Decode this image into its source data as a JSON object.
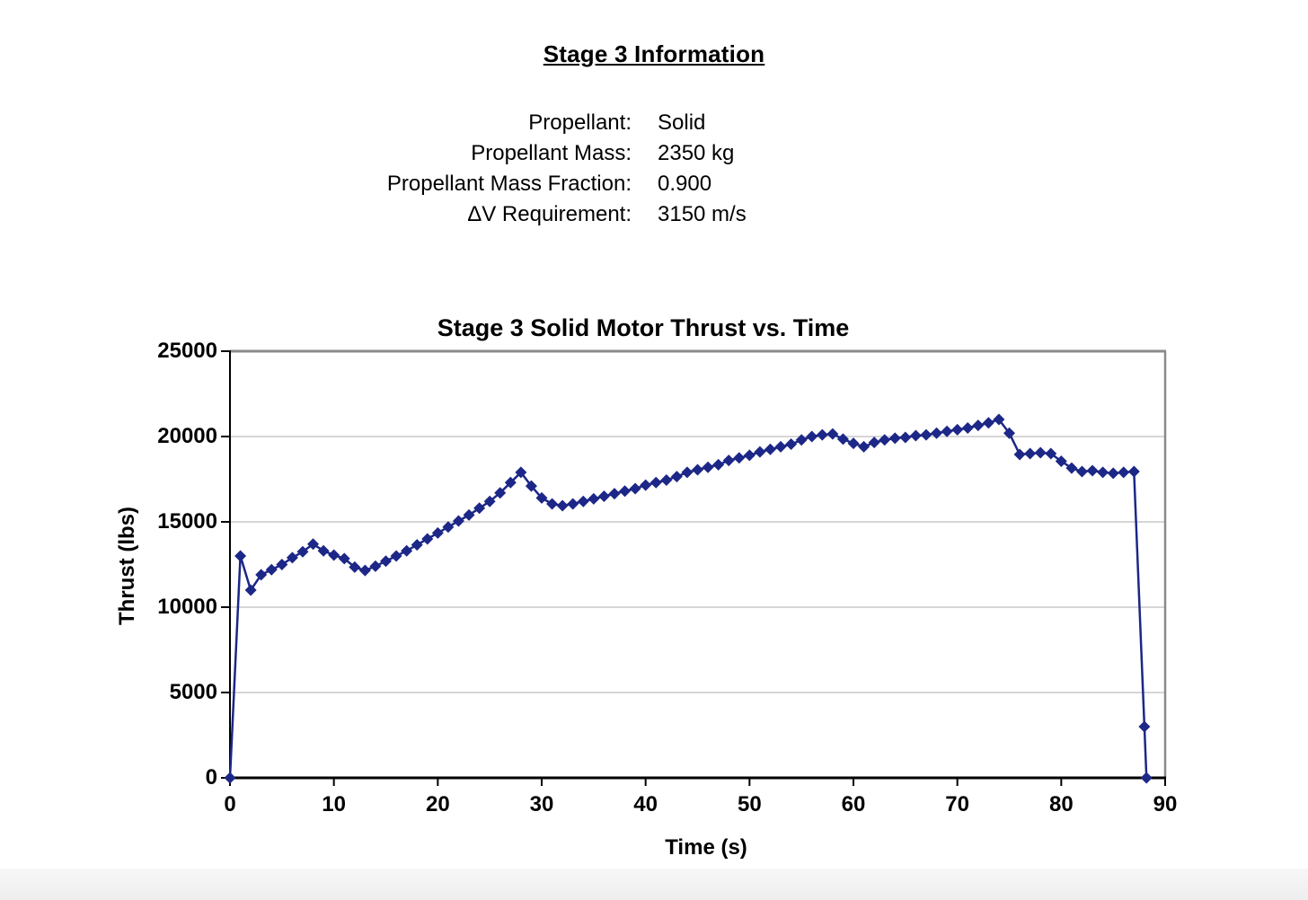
{
  "info_panel": {
    "title": "Stage 3 Information",
    "rows": [
      {
        "label": "Propellant:",
        "value": "Solid"
      },
      {
        "label": "Propellant Mass:",
        "value": "2350 kg"
      },
      {
        "label": "Propellant Mass Fraction:",
        "value": "0.900"
      },
      {
        "label": "ΔV Requirement:",
        "value": "3150 m/s"
      }
    ]
  },
  "chart_data": {
    "type": "line",
    "title": "Stage 3 Solid Motor Thrust vs. Time",
    "xlabel": "Time (s)",
    "ylabel": "Thrust (lbs)",
    "xlim": [
      0,
      90
    ],
    "ylim": [
      0,
      25000
    ],
    "x_ticks": [
      0,
      10,
      20,
      30,
      40,
      50,
      60,
      70,
      80,
      90
    ],
    "y_ticks": [
      0,
      5000,
      10000,
      15000,
      20000,
      25000
    ],
    "grid": "horizontal",
    "legend": "none",
    "colors": {
      "series": "#1c2787",
      "gridline": "#c8c8c8",
      "plot_border": "#8a8a8a",
      "axis": "#000000"
    },
    "series": [
      {
        "name": "Thrust",
        "marker": "diamond",
        "x": [
          0,
          1,
          2,
          3,
          4,
          5,
          6,
          7,
          8,
          9,
          10,
          11,
          12,
          13,
          14,
          15,
          16,
          17,
          18,
          19,
          20,
          21,
          22,
          23,
          24,
          25,
          26,
          27,
          28,
          29,
          30,
          31,
          32,
          33,
          34,
          35,
          36,
          37,
          38,
          39,
          40,
          41,
          42,
          43,
          44,
          45,
          46,
          47,
          48,
          49,
          50,
          51,
          52,
          53,
          54,
          55,
          56,
          57,
          58,
          59,
          60,
          61,
          62,
          63,
          64,
          65,
          66,
          67,
          68,
          69,
          70,
          71,
          72,
          73,
          74,
          75,
          76,
          77,
          78,
          79,
          80,
          81,
          82,
          83,
          84,
          85,
          86,
          87,
          88,
          88.2
        ],
        "y": [
          0,
          13000,
          11000,
          11900,
          12200,
          12500,
          12900,
          13250,
          13700,
          13300,
          13050,
          12850,
          12350,
          12150,
          12400,
          12700,
          13000,
          13300,
          13650,
          14000,
          14350,
          14700,
          15050,
          15400,
          15800,
          16200,
          16700,
          17300,
          17900,
          17100,
          16400,
          16050,
          15950,
          16050,
          16200,
          16350,
          16500,
          16650,
          16800,
          16950,
          17150,
          17300,
          17450,
          17650,
          17900,
          18050,
          18200,
          18350,
          18600,
          18750,
          18900,
          19100,
          19250,
          19400,
          19550,
          19800,
          20000,
          20100,
          20150,
          19850,
          19600,
          19400,
          19650,
          19800,
          19900,
          19950,
          20050,
          20100,
          20200,
          20300,
          20400,
          20500,
          20650,
          20800,
          21000,
          20200,
          18950,
          19000,
          19050,
          19000,
          18550,
          18150,
          17950,
          18000,
          17900,
          17850,
          17900,
          17950,
          3000,
          0
        ]
      }
    ]
  }
}
